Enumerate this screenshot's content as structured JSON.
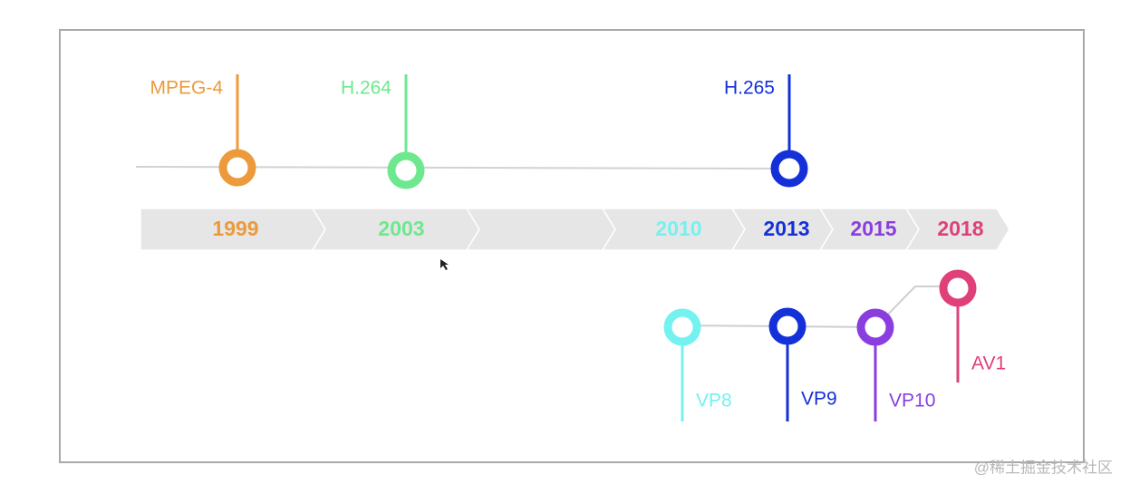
{
  "years": [
    {
      "label": "1999",
      "color": "#ec9a3c"
    },
    {
      "label": "2003",
      "color": "#6ee88e"
    },
    {
      "label": "2010",
      "color": "#74f2f0"
    },
    {
      "label": "2013",
      "color": "#1430d8"
    },
    {
      "label": "2015",
      "color": "#8a3ee0"
    },
    {
      "label": "2018",
      "color": "#e0407a"
    }
  ],
  "top_codecs": [
    {
      "name": "MPEG-4",
      "color": "#ec9a3c"
    },
    {
      "name": "H.264",
      "color": "#6ee88e"
    },
    {
      "name": "H.265",
      "color": "#1430d8"
    }
  ],
  "bottom_codecs": [
    {
      "name": "VP8",
      "color": "#74f2f0"
    },
    {
      "name": "VP9",
      "color": "#1430d8"
    },
    {
      "name": "VP10",
      "color": "#8a3ee0"
    },
    {
      "name": "AV1",
      "color": "#e0407a"
    }
  ],
  "watermark": "@稀土掘金技术社区"
}
